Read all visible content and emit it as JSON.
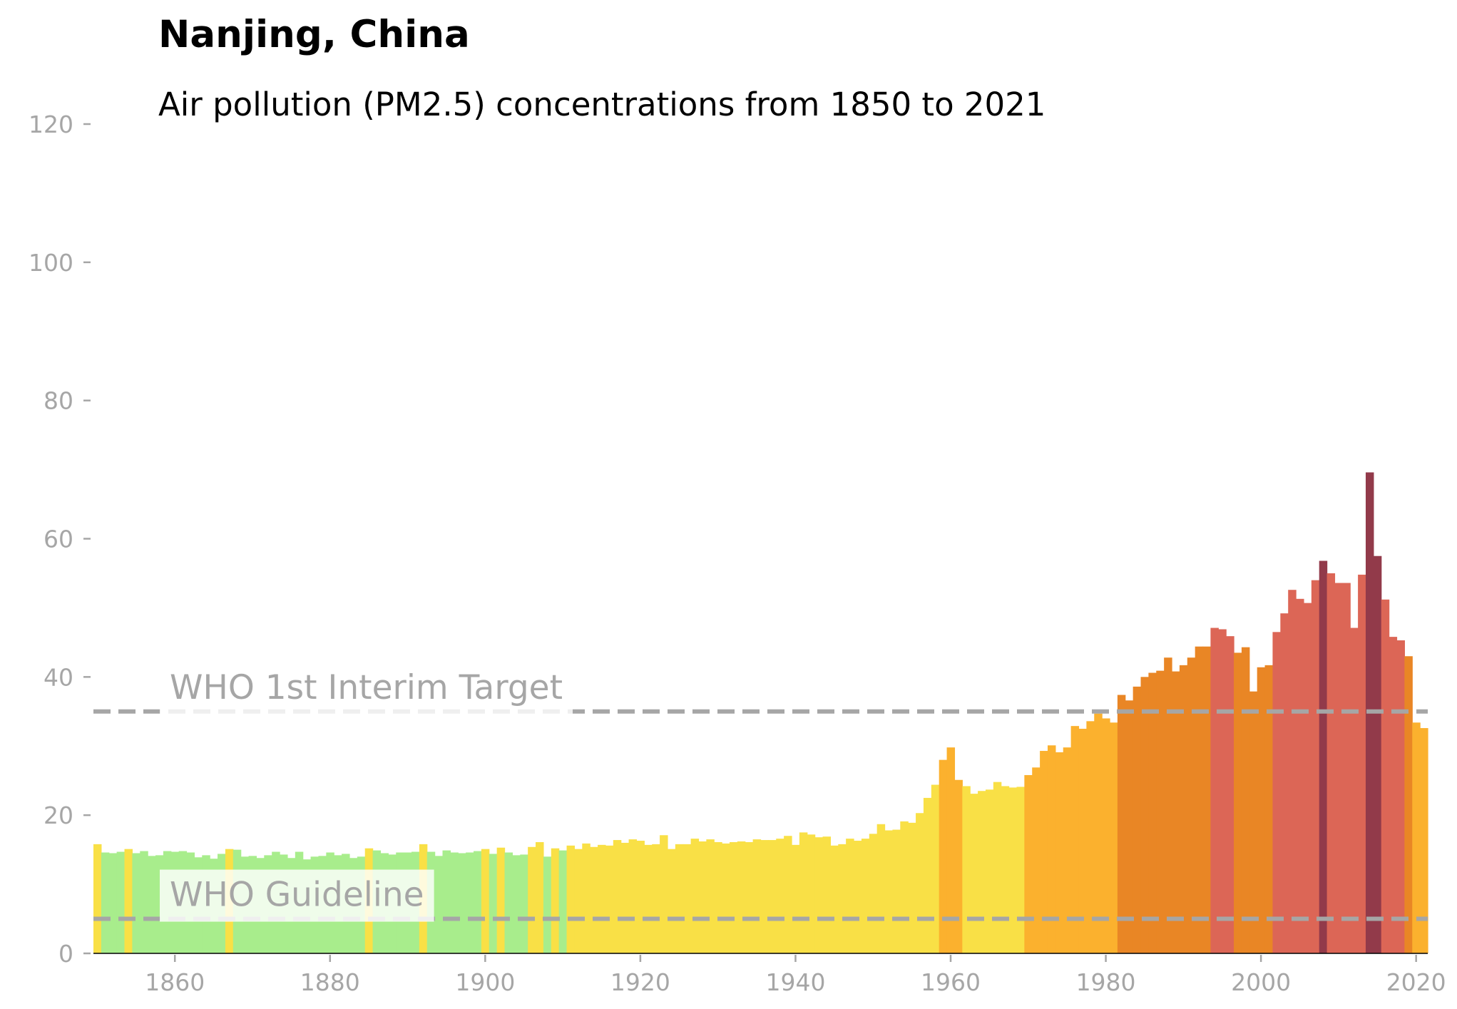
{
  "chart_data": {
    "type": "bar",
    "title": "Nanjing, China",
    "subtitle": "Air pollution (PM2.5) concentrations from 1850 to 2021",
    "xlabel": "",
    "ylabel": "",
    "xlim": [
      1850,
      2022
    ],
    "ylim": [
      0,
      120
    ],
    "x_ticks": [
      1860,
      1880,
      1900,
      1920,
      1940,
      1960,
      1980,
      2000,
      2020
    ],
    "y_ticks": [
      0,
      20,
      40,
      60,
      80,
      100,
      120
    ],
    "grid": false,
    "legend": "none",
    "years": [
      1850,
      1851,
      1852,
      1853,
      1854,
      1855,
      1856,
      1857,
      1858,
      1859,
      1860,
      1861,
      1862,
      1863,
      1864,
      1865,
      1866,
      1867,
      1868,
      1869,
      1870,
      1871,
      1872,
      1873,
      1874,
      1875,
      1876,
      1877,
      1878,
      1879,
      1880,
      1881,
      1882,
      1883,
      1884,
      1885,
      1886,
      1887,
      1888,
      1889,
      1890,
      1891,
      1892,
      1893,
      1894,
      1895,
      1896,
      1897,
      1898,
      1899,
      1900,
      1901,
      1902,
      1903,
      1904,
      1905,
      1906,
      1907,
      1908,
      1909,
      1910,
      1911,
      1912,
      1913,
      1914,
      1915,
      1916,
      1917,
      1918,
      1919,
      1920,
      1921,
      1922,
      1923,
      1924,
      1925,
      1926,
      1927,
      1928,
      1929,
      1930,
      1931,
      1932,
      1933,
      1934,
      1935,
      1936,
      1937,
      1938,
      1939,
      1940,
      1941,
      1942,
      1943,
      1944,
      1945,
      1946,
      1947,
      1948,
      1949,
      1950,
      1951,
      1952,
      1953,
      1954,
      1955,
      1956,
      1957,
      1958,
      1959,
      1960,
      1961,
      1962,
      1963,
      1964,
      1965,
      1966,
      1967,
      1968,
      1969,
      1970,
      1971,
      1972,
      1973,
      1974,
      1975,
      1976,
      1977,
      1978,
      1979,
      1980,
      1981,
      1982,
      1983,
      1984,
      1985,
      1986,
      1987,
      1988,
      1989,
      1990,
      1991,
      1992,
      1993,
      1994,
      1995,
      1996,
      1997,
      1998,
      1999,
      2000,
      2001,
      2002,
      2003,
      2004,
      2005,
      2006,
      2007,
      2008,
      2009,
      2010,
      2011,
      2012,
      2013,
      2014,
      2015,
      2016,
      2017,
      2018,
      2019,
      2020,
      2021
    ],
    "values": [
      15.8,
      14.6,
      14.5,
      14.7,
      15.1,
      14.5,
      14.8,
      14.1,
      14.2,
      14.8,
      14.7,
      14.8,
      14.6,
      13.9,
      14.2,
      13.7,
      14.4,
      15.1,
      15.0,
      14.0,
      14.1,
      13.8,
      14.2,
      14.7,
      14.3,
      13.8,
      14.7,
      13.6,
      14.0,
      14.1,
      14.6,
      14.2,
      14.4,
      13.8,
      14.0,
      15.2,
      14.9,
      14.5,
      14.3,
      14.6,
      14.6,
      14.7,
      15.8,
      14.7,
      14.1,
      14.9,
      14.6,
      14.5,
      14.6,
      14.8,
      15.1,
      14.4,
      15.3,
      14.6,
      14.2,
      14.3,
      15.4,
      16.1,
      14.0,
      15.2,
      14.9,
      15.6,
      15.1,
      15.9,
      15.4,
      15.7,
      15.6,
      16.4,
      16.0,
      16.5,
      16.3,
      15.7,
      15.8,
      17.1,
      15.1,
      15.8,
      15.8,
      16.6,
      16.2,
      16.5,
      16.1,
      15.9,
      16.1,
      16.2,
      16.1,
      16.5,
      16.4,
      16.4,
      16.6,
      17.0,
      15.7,
      17.5,
      17.2,
      16.8,
      16.9,
      15.6,
      15.8,
      16.6,
      16.3,
      16.6,
      17.3,
      18.7,
      17.8,
      17.9,
      19.1,
      18.9,
      20.3,
      22.5,
      24.4,
      28.0,
      29.8,
      25.1,
      24.2,
      23.1,
      23.5,
      23.7,
      24.8,
      24.2,
      24.0,
      24.1,
      25.8,
      26.9,
      29.3,
      30.1,
      29.1,
      29.8,
      32.9,
      32.5,
      33.6,
      34.7,
      34.0,
      33.4,
      37.4,
      36.6,
      38.6,
      40.0,
      40.6,
      40.9,
      42.8,
      40.8,
      41.7,
      42.8,
      44.4,
      44.4,
      47.1,
      46.9,
      45.9,
      43.5,
      44.3,
      37.9,
      41.4,
      41.7,
      46.5,
      49.2,
      52.6,
      51.3,
      50.7,
      54.0,
      56.8,
      55.0,
      53.6,
      53.6,
      47.1,
      54.8,
      69.6,
      57.5,
      51.2,
      45.8,
      45.3,
      43.0,
      33.4,
      32.6
    ]
  },
  "bands": [
    {
      "name": "green",
      "max": 15,
      "color": "#a8ed8c"
    },
    {
      "name": "yellow",
      "max": 25,
      "color": "#f9e046"
    },
    {
      "name": "light-orange",
      "max": 35,
      "color": "#fbb12e"
    },
    {
      "name": "dark-orange",
      "max": 45,
      "color": "#e98625"
    },
    {
      "name": "red",
      "max": 56,
      "color": "#dc6656"
    },
    {
      "name": "maroon",
      "max": 999,
      "color": "#923a4a"
    }
  ],
  "reference_lines": [
    {
      "label": "WHO 1st Interim Target",
      "value": 35,
      "color": "#a6a6a6"
    },
    {
      "label": "WHO Guideline",
      "value": 5,
      "color": "#a6a6a6"
    }
  ]
}
